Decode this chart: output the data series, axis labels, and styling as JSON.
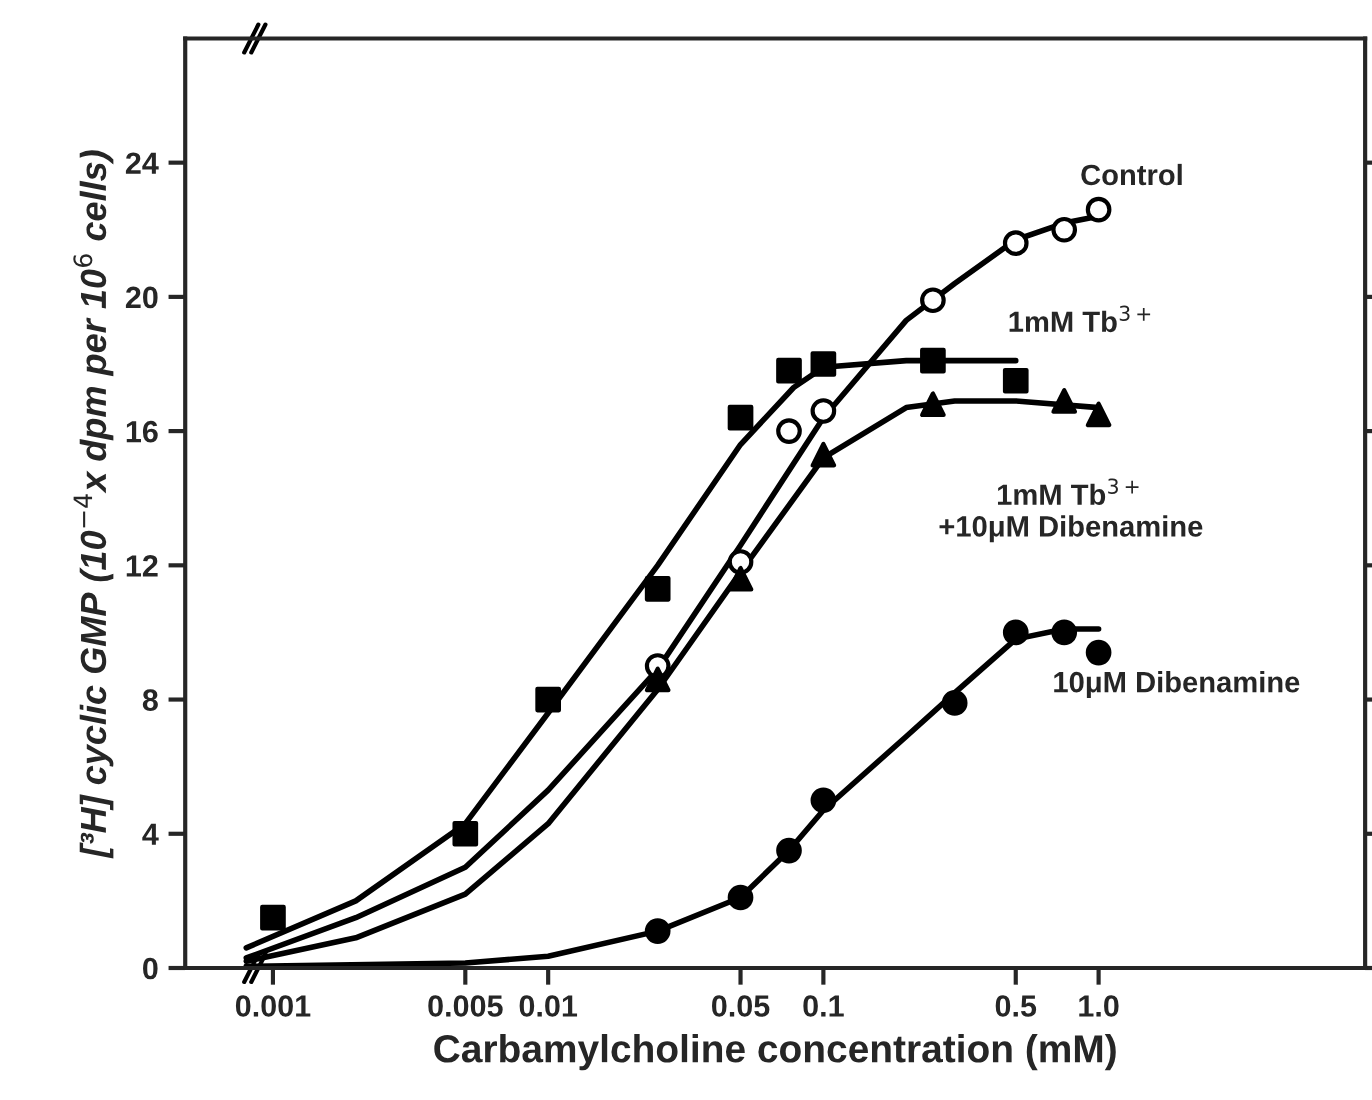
{
  "chart_data": {
    "type": "scatter",
    "xlabel": "Carbamylcholine concentration (mM)",
    "ylabel": "[³H] cyclic GMP (10$^{−4}$x dpm per 10$^{6}$ cells)",
    "log": "x",
    "xlim": [
      0.00048,
      9.3
    ],
    "ylim": [
      0,
      27.7
    ],
    "xticks": [
      0.001,
      0.005,
      0.01,
      0.05,
      0.1,
      0.5,
      {
        "value": 1,
        "label": "1.0"
      }
    ],
    "yticks": [
      0,
      4,
      8,
      12,
      16,
      20,
      24
    ],
    "grid": false,
    "legend": false,
    "series": [
      {
        "marker": "circle",
        "color": "#ffffff",
        "x": [
          0.025,
          0.05,
          0.075,
          0.1,
          0.25,
          0.5,
          0.75,
          1.0
        ],
        "values": [
          9.0,
          12.1,
          16.0,
          16.6,
          19.9,
          21.6,
          22.0,
          22.6
        ]
      },
      {
        "marker": "square",
        "color": "#000000",
        "x": [
          0.001,
          0.005,
          0.01,
          0.025,
          0.05,
          0.075,
          0.1,
          0.25,
          0.5
        ],
        "values": [
          1.5,
          4.0,
          8.0,
          11.3,
          16.4,
          17.8,
          18.0,
          18.1,
          17.5
        ]
      },
      {
        "marker": "triangle",
        "color": "#000000",
        "x": [
          0.025,
          0.05,
          0.1,
          0.25,
          0.75,
          1.0
        ],
        "values": [
          8.6,
          11.6,
          15.3,
          16.8,
          16.9,
          16.5
        ]
      },
      {
        "marker": "circle",
        "color": "#000000",
        "x": [
          0.025,
          0.05,
          0.075,
          0.1,
          0.3,
          0.5,
          0.75,
          1.0
        ],
        "values": [
          1.1,
          2.1,
          3.5,
          5.0,
          7.9,
          10.0,
          10.0,
          9.4
        ]
      },
      {
        "type": "line",
        "name": "Control",
        "color": "#000000",
        "x": [
          0.0008,
          0.002,
          0.005,
          0.01,
          0.025,
          0.05,
          0.1,
          0.2,
          0.3,
          0.5,
          0.75,
          1.0
        ],
        "values": [
          0.3,
          1.5,
          3.0,
          5.3,
          8.9,
          12.6,
          16.4,
          19.3,
          20.4,
          21.7,
          22.2,
          22.4
        ]
      },
      {
        "type": "line",
        "name": "1mM Tb$^{3+}$",
        "color": "#000000",
        "x": [
          0.0008,
          0.002,
          0.005,
          0.01,
          0.025,
          0.05,
          0.078,
          0.1,
          0.2,
          0.5
        ],
        "values": [
          0.6,
          2.0,
          4.3,
          7.6,
          12.0,
          15.6,
          17.3,
          17.9,
          18.1,
          18.1
        ]
      },
      {
        "type": "line",
        "name": "1mM Tb$^{3+}$\n+10μM Dibenamine",
        "color": "#000000",
        "x": [
          0.0008,
          0.002,
          0.005,
          0.01,
          0.025,
          0.05,
          0.1,
          0.2,
          0.3,
          0.5,
          1.0
        ],
        "values": [
          0.2,
          0.9,
          2.2,
          4.3,
          8.3,
          11.8,
          15.2,
          16.7,
          16.9,
          16.9,
          16.7
        ]
      },
      {
        "type": "line",
        "name": "10μM Dibenamine",
        "color": "#000000",
        "x": [
          0.0008,
          0.005,
          0.01,
          0.025,
          0.05,
          0.075,
          0.1,
          0.2,
          0.3,
          0.5,
          0.75,
          1.0
        ],
        "values": [
          0.05,
          0.15,
          0.35,
          1.1,
          2.1,
          3.5,
          4.7,
          6.9,
          8.2,
          9.8,
          10.1,
          10.1
        ]
      }
    ]
  }
}
